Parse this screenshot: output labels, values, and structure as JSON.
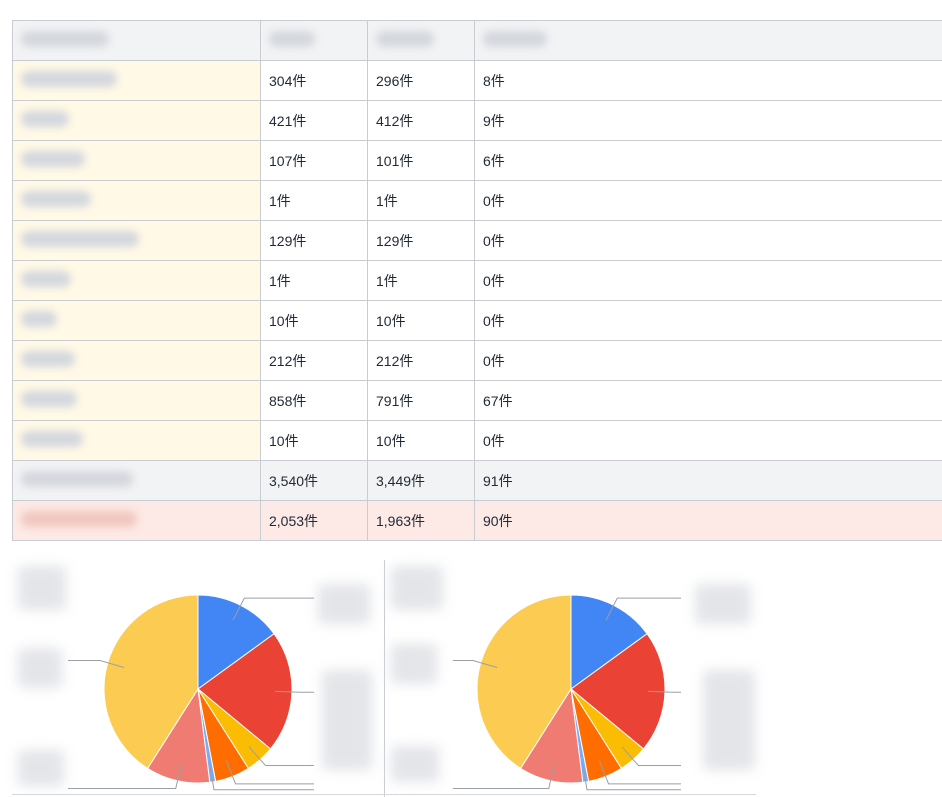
{
  "table": {
    "columns": [
      "",
      "",
      "",
      ""
    ],
    "rows": [
      {
        "c1": "304件",
        "c2": "296件",
        "c3": "8件"
      },
      {
        "c1": "421件",
        "c2": "412件",
        "c3": "9件"
      },
      {
        "c1": "107件",
        "c2": "101件",
        "c3": "6件"
      },
      {
        "c1": "1件",
        "c2": "1件",
        "c3": "0件"
      },
      {
        "c1": "129件",
        "c2": "129件",
        "c3": "0件"
      },
      {
        "c1": "1件",
        "c2": "1件",
        "c3": "0件"
      },
      {
        "c1": "10件",
        "c2": "10件",
        "c3": "0件"
      },
      {
        "c1": "212件",
        "c2": "212件",
        "c3": "0件"
      },
      {
        "c1": "858件",
        "c2": "791件",
        "c3": "67件"
      },
      {
        "c1": "10件",
        "c2": "10件",
        "c3": "0件"
      }
    ],
    "total": {
      "c1": "3,540件",
      "c2": "3,449件",
      "c3": "91件"
    },
    "highlight": {
      "c1": "2,053件",
      "c2": "1,963件",
      "c3": "90件"
    }
  },
  "chart_data": [
    {
      "type": "pie",
      "series": [
        {
          "values": [
            15,
            21,
            5,
            6,
            1,
            11,
            41
          ]
        }
      ],
      "colors": [
        "#4285f4",
        "#ea4335",
        "#fbbc04",
        "#ff6d01",
        "#7baaf7",
        "#f07b72",
        "#fccc52"
      ]
    },
    {
      "type": "pie",
      "series": [
        {
          "values": [
            15,
            21,
            5,
            6,
            1,
            11,
            41
          ]
        }
      ],
      "colors": [
        "#4285f4",
        "#ea4335",
        "#fbbc04",
        "#ff6d01",
        "#7baaf7",
        "#f07b72",
        "#fccc52"
      ]
    }
  ]
}
